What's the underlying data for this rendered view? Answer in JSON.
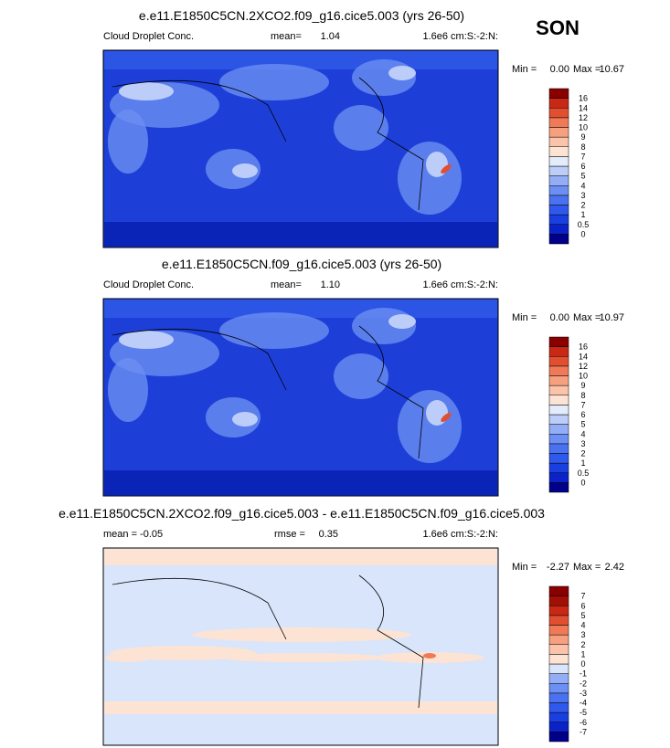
{
  "season": "SON",
  "panels": [
    {
      "title": "e.e11.E1850C5CN.2XCO2.f09_g16.cice5.003 (yrs 26-50)",
      "left_label": "Cloud Droplet Conc.",
      "mean_label": "mean=",
      "mean": "1.04",
      "units": "1.6e6 cm:S:-2:N:",
      "min_label": "Min =",
      "min": "0.00",
      "max_label": "Max =",
      "max": "10.67",
      "colorbar_labels": [
        "0",
        "0.5",
        "1",
        "2",
        "3",
        "4",
        "5",
        "6",
        "7",
        "8",
        "9",
        "10",
        "12",
        "14",
        "16"
      ],
      "colorbar_colors": [
        "#00008a",
        "#0a22c8",
        "#1a3fe0",
        "#2f58ec",
        "#4a72f0",
        "#6c8ff3",
        "#93aef6",
        "#bccdf9",
        "#e4ecfc",
        "#fde3d3",
        "#fbc4aa",
        "#f7a07f",
        "#f07a57",
        "#e24f30",
        "#c82814",
        "#8a0000"
      ]
    },
    {
      "title": "e.e11.E1850C5CN.f09_g16.cice5.003 (yrs 26-50)",
      "left_label": "Cloud Droplet Conc.",
      "mean_label": "mean=",
      "mean": "1.10",
      "units": "1.6e6 cm:S:-2:N:",
      "min_label": "Min =",
      "min": "0.00",
      "max_label": "Max =",
      "max": "10.97",
      "colorbar_labels": [
        "0",
        "0.5",
        "1",
        "2",
        "3",
        "4",
        "5",
        "6",
        "7",
        "8",
        "9",
        "10",
        "12",
        "14",
        "16"
      ],
      "colorbar_colors": [
        "#00008a",
        "#0a22c8",
        "#1a3fe0",
        "#2f58ec",
        "#4a72f0",
        "#6c8ff3",
        "#93aef6",
        "#bccdf9",
        "#e4ecfc",
        "#fde3d3",
        "#fbc4aa",
        "#f7a07f",
        "#f07a57",
        "#e24f30",
        "#c82814",
        "#8a0000"
      ]
    },
    {
      "title": "e.e11.E1850C5CN.2XCO2.f09_g16.cice5.003 - e.e11.E1850C5CN.f09_g16.cice5.003",
      "left_label": "mean =  -0.05",
      "mean_label": "rmse =",
      "mean": "0.35",
      "units": "1.6e6 cm:S:-2:N:",
      "min_label": "Min =",
      "min": "-2.27",
      "max_label": "Max =",
      "max": "2.42",
      "colorbar_labels": [
        "-7",
        "-6",
        "-5",
        "-4",
        "-3",
        "-2",
        "-1",
        "0",
        "1",
        "2",
        "3",
        "4",
        "5",
        "6",
        "7"
      ],
      "colorbar_colors": [
        "#00008a",
        "#0a22c8",
        "#1a3fe0",
        "#2f58ec",
        "#4a72f0",
        "#6c8ff3",
        "#93aef6",
        "#d8e5fb",
        "#fde3d3",
        "#fbc4aa",
        "#f7a07f",
        "#f07a57",
        "#e24f30",
        "#c82814",
        "#a01005",
        "#8a0000"
      ]
    }
  ]
}
